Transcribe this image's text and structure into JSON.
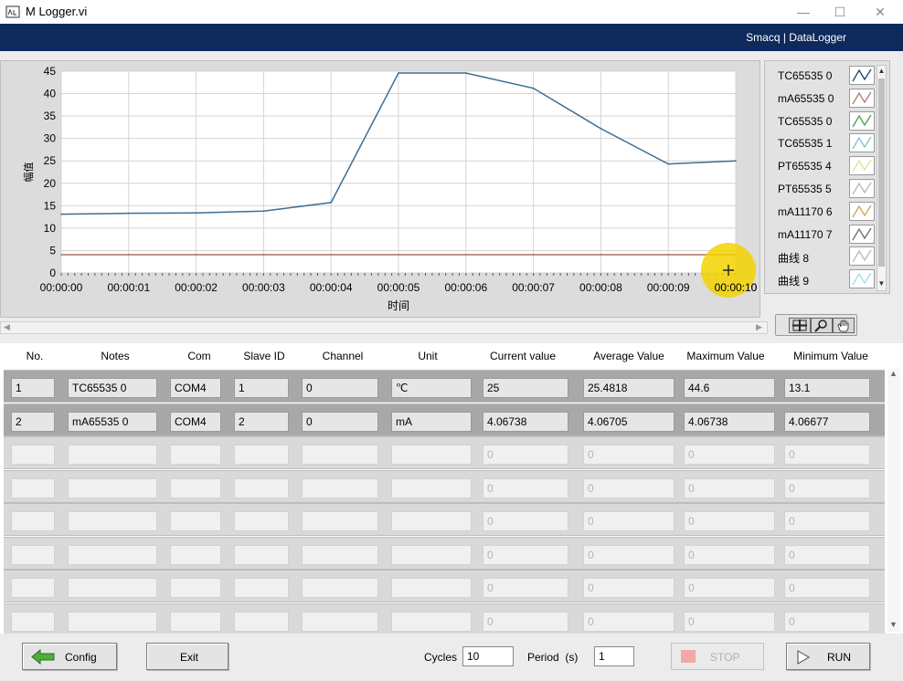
{
  "window": {
    "title": "M Logger.vi",
    "minimize": "—",
    "maximize": "☐",
    "close": "✕"
  },
  "brand": "Smacq | DataLogger",
  "chart_data": {
    "type": "line",
    "title": "",
    "xlabel": "时间",
    "ylabel": "幅值",
    "x": [
      "00:00:00",
      "00:00:01",
      "00:00:02",
      "00:00:03",
      "00:00:04",
      "00:00:05",
      "00:00:06",
      "00:00:07",
      "00:00:08",
      "00:00:09",
      "00:00:10"
    ],
    "series": [
      {
        "name": "TC65535 0",
        "values": [
          13.1,
          13.3,
          13.4,
          13.8,
          15.7,
          44.6,
          44.6,
          41.2,
          32.2,
          24.3,
          25.0
        ],
        "color": "#3b6e94"
      },
      {
        "name": "mA65535 0",
        "values": [
          4.07,
          4.07,
          4.07,
          4.07,
          4.07,
          4.07,
          4.07,
          4.07,
          4.07,
          4.07,
          4.07
        ],
        "color": "#a87060"
      }
    ],
    "y_ticks": [
      0,
      5,
      10,
      15,
      20,
      25,
      30,
      35,
      40,
      45
    ],
    "ylim": [
      0,
      45
    ],
    "grid": true
  },
  "legend": [
    {
      "label": "TC65535 0",
      "color": "#1e3f6a"
    },
    {
      "label": "mA65535 0",
      "color": "#b07a6a"
    },
    {
      "label": "TC65535 0",
      "color": "#3fa34d"
    },
    {
      "label": "TC65535 1",
      "color": "#7cc4d8"
    },
    {
      "label": "PT65535 4",
      "color": "#e4e09a"
    },
    {
      "label": "PT65535 5",
      "color": "#b8b8b8"
    },
    {
      "label": "mA11170 6",
      "color": "#c8a84a"
    },
    {
      "label": "mA11170 7",
      "color": "#6a6a6a"
    },
    {
      "label": "曲线 8",
      "color": "#b8b8b8"
    },
    {
      "label": "曲线 9",
      "color": "#9fdbe8"
    }
  ],
  "table": {
    "headers": [
      "No.",
      "Notes",
      "Com",
      "Slave ID",
      "Channel",
      "Unit",
      "Current value",
      "Average Value",
      "Maximum Value",
      "Minimum Value"
    ],
    "rows": [
      [
        "1",
        "TC65535 0",
        "COM4",
        "1",
        "0",
        "℃",
        "25",
        "25.4818",
        "44.6",
        "13.1"
      ],
      [
        "2",
        "mA65535 0",
        "COM4",
        "2",
        "0",
        "mA",
        "4.06738",
        "4.06705",
        "4.06738",
        "4.06677"
      ],
      [
        "",
        "",
        "",
        "",
        "",
        "",
        "0",
        "0",
        "0",
        "0"
      ],
      [
        "",
        "",
        "",
        "",
        "",
        "",
        "0",
        "0",
        "0",
        "0"
      ],
      [
        "",
        "",
        "",
        "",
        "",
        "",
        "0",
        "0",
        "0",
        "0"
      ],
      [
        "",
        "",
        "",
        "",
        "",
        "",
        "0",
        "0",
        "0",
        "0"
      ],
      [
        "",
        "",
        "",
        "",
        "",
        "",
        "0",
        "0",
        "0",
        "0"
      ],
      [
        "",
        "",
        "",
        "",
        "",
        "",
        "0",
        "0",
        "0",
        "0"
      ]
    ]
  },
  "controls": {
    "config_label": "Config",
    "exit_label": "Exit",
    "cycles_label": "Cycles",
    "cycles_value": "10",
    "period_label": "Period  (s)",
    "period_value": "1",
    "stop_label": "STOP",
    "run_label": "RUN"
  }
}
